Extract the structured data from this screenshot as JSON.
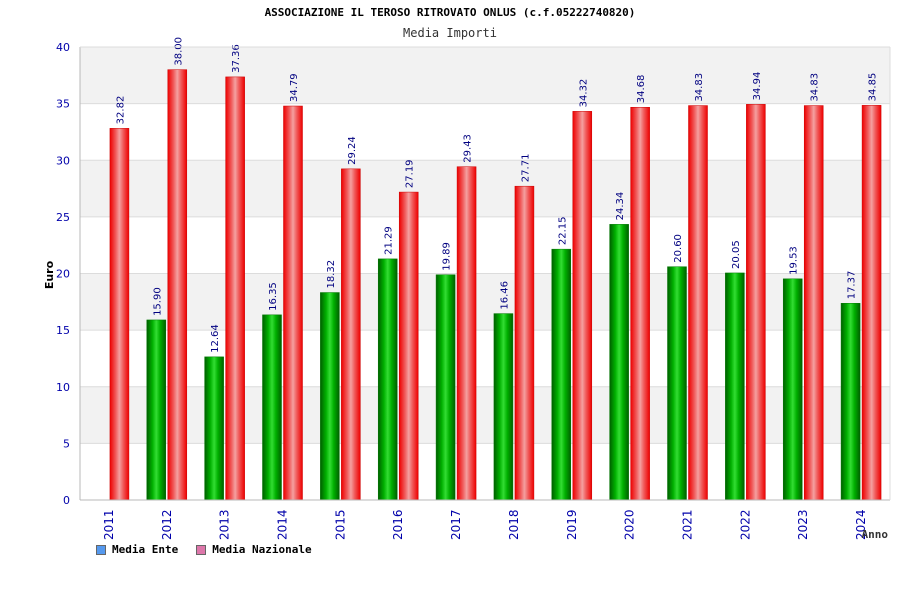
{
  "chart_data": {
    "type": "bar",
    "title": "ASSOCIAZIONE IL TEROSO RITROVATO ONLUS (c.f.05222740820)",
    "subtitle": "Media Importi",
    "ylabel": "Euro",
    "xlabel": "Anno",
    "ylim": [
      0,
      40
    ],
    "yticks": [
      0,
      5,
      10,
      15,
      20,
      25,
      30,
      35,
      40
    ],
    "categories": [
      "2011",
      "2012",
      "2013",
      "2014",
      "2015",
      "2016",
      "2017",
      "2018",
      "2019",
      "2020",
      "2021",
      "2022",
      "2023",
      "2024"
    ],
    "series": [
      {
        "name": "Media Ente",
        "color": "#00aa00",
        "legend_color": "#5599ee",
        "values": [
          null,
          15.9,
          12.64,
          16.35,
          18.32,
          21.29,
          19.89,
          16.46,
          22.15,
          24.34,
          20.6,
          20.05,
          19.53,
          17.37
        ],
        "labels": [
          "",
          "15.90",
          "12.64",
          "16.35",
          "18.32",
          "21.29",
          "19.89",
          "16.46",
          "22.15",
          "24.34",
          "20.60",
          "20.05",
          "19.53",
          "17.37"
        ]
      },
      {
        "name": "Media Nazionale",
        "color": "#ee1111",
        "legend_color": "#dd77aa",
        "values": [
          32.82,
          38.0,
          37.36,
          34.79,
          29.24,
          27.19,
          29.43,
          27.71,
          34.32,
          34.68,
          34.83,
          34.94,
          34.83,
          34.85
        ],
        "labels": [
          "32.82",
          "38.00",
          "37.36",
          "34.79",
          "29.24",
          "27.19",
          "29.43",
          "27.71",
          "34.32",
          "34.68",
          "34.83",
          "34.94",
          "34.83",
          "34.85"
        ]
      }
    ],
    "grid": true,
    "legend_position": "bottom-left"
  }
}
